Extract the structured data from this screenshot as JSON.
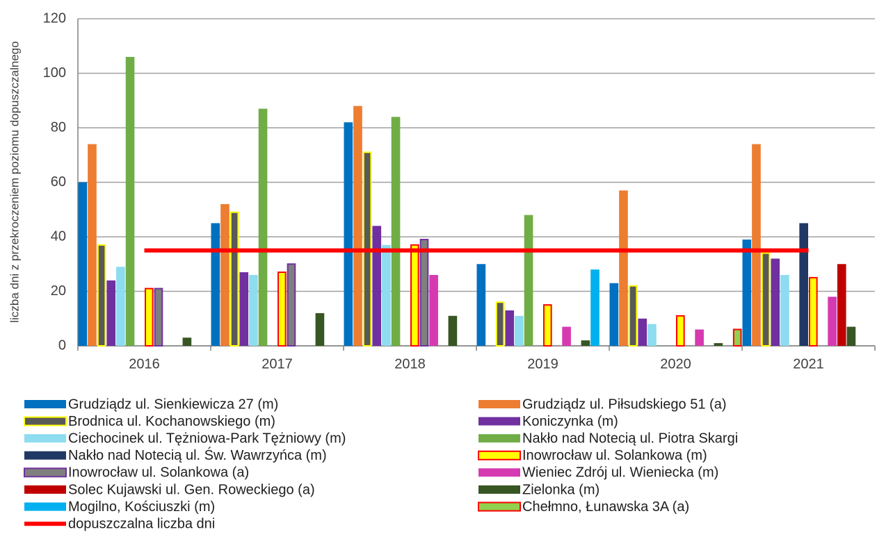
{
  "chart_data": {
    "type": "bar",
    "y_label": "liczba dni z przekroczeniem poziomu dopuszczalnego",
    "categories": [
      "2016",
      "2017",
      "2018",
      "2019",
      "2020",
      "2021"
    ],
    "ylim": [
      0,
      120
    ],
    "yticks": [
      0,
      20,
      40,
      60,
      80,
      100,
      120
    ],
    "grid": true,
    "series": [
      {
        "name": "Grudziądz ul. Sienkiewicza 27 (m)",
        "color": "#0070c0",
        "values": [
          60,
          45,
          82,
          30,
          23,
          39
        ]
      },
      {
        "name": "Grudziądz ul. Piłsudskiego 51 (a)",
        "color": "#ed7d31",
        "values": [
          74,
          52,
          88,
          null,
          57,
          74
        ]
      },
      {
        "name": "Brodnica ul. Kochanowskiego (m)",
        "color": "#595959",
        "edgecolor": "#ffff00",
        "values": [
          37,
          49,
          71,
          16,
          22,
          34
        ]
      },
      {
        "name": "Koniczynka (m)",
        "color": "#7030a0",
        "values": [
          24,
          27,
          44,
          13,
          10,
          32
        ]
      },
      {
        "name": "Ciechocinek ul. Tężniowa-Park Tężniowy (m)",
        "color": "#8ddcf0",
        "values": [
          29,
          26,
          37,
          11,
          8,
          26
        ]
      },
      {
        "name": "Nakło nad Notecią ul. Piotra Skargi",
        "color": "#70ad47",
        "values": [
          106,
          87,
          84,
          48,
          null,
          null
        ]
      },
      {
        "name": "Nakło nad Notecią ul. Św. Wawrzyńca (m)",
        "color": "#203864",
        "values": [
          null,
          null,
          null,
          null,
          null,
          45
        ]
      },
      {
        "name": "Inowrocław ul. Solankowa (m)",
        "color": "#ffff00",
        "edgecolor": "#ff0000",
        "values": [
          21,
          27,
          37,
          15,
          11,
          25
        ]
      },
      {
        "name": "Inowrocław ul. Solankowa (a)",
        "color": "#7f7f7f",
        "edgecolor": "#7030a0",
        "values": [
          21,
          30,
          39,
          null,
          null,
          null
        ]
      },
      {
        "name": "Wieniec Zdrój ul. Wieniecka (m)",
        "color": "#d63ab0",
        "values": [
          null,
          null,
          26,
          7,
          6,
          18
        ]
      },
      {
        "name": "Solec Kujawski ul. Gen. Roweckiego (a)",
        "color": "#c00000",
        "values": [
          null,
          null,
          null,
          null,
          null,
          30
        ]
      },
      {
        "name": "Zielonka (m)",
        "color": "#375623",
        "values": [
          3,
          12,
          11,
          2,
          1,
          7
        ]
      },
      {
        "name": "Mogilno, Kościuszki (m)",
        "color": "#00b0f0",
        "values": [
          null,
          null,
          null,
          28,
          null,
          null
        ]
      },
      {
        "name": "Chełmno, Łunawska 3A (a)",
        "color": "#92d050",
        "edgecolor": "#ff0000",
        "values": [
          null,
          null,
          null,
          null,
          6,
          null
        ]
      },
      {
        "name": "dopuszczalna liczba dni",
        "type": "line",
        "color": "#ff0000",
        "values": [
          35,
          35,
          35,
          35,
          35,
          35
        ]
      }
    ]
  }
}
